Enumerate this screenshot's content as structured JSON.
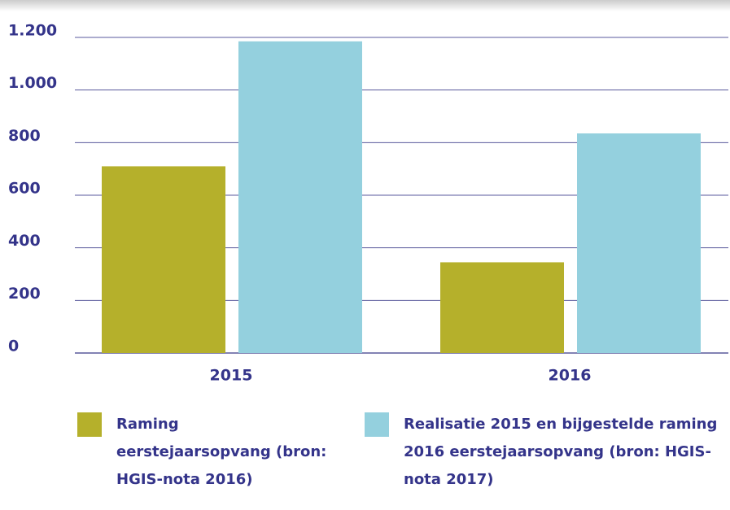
{
  "chart_data": {
    "type": "bar",
    "categories": [
      "2015",
      "2016"
    ],
    "series": [
      {
        "name": "Raming eerstejaarsopvang (bron: HGIS-nota 2016)",
        "color": "#b5b02b",
        "values": [
          710,
          345
        ]
      },
      {
        "name": "Realisatie 2015 en bijgestelde raming 2016 eerstejaarsopvang (bron: HGIS-nota 2017)",
        "color": "#94d0de",
        "values": [
          1185,
          835
        ]
      }
    ],
    "ylim": [
      0,
      1200
    ],
    "yticks": [
      0,
      200,
      400,
      600,
      800,
      {
        "value": 1000,
        "label": "1.000"
      },
      {
        "value": 1200,
        "label": "1.200"
      }
    ],
    "grid": true
  }
}
